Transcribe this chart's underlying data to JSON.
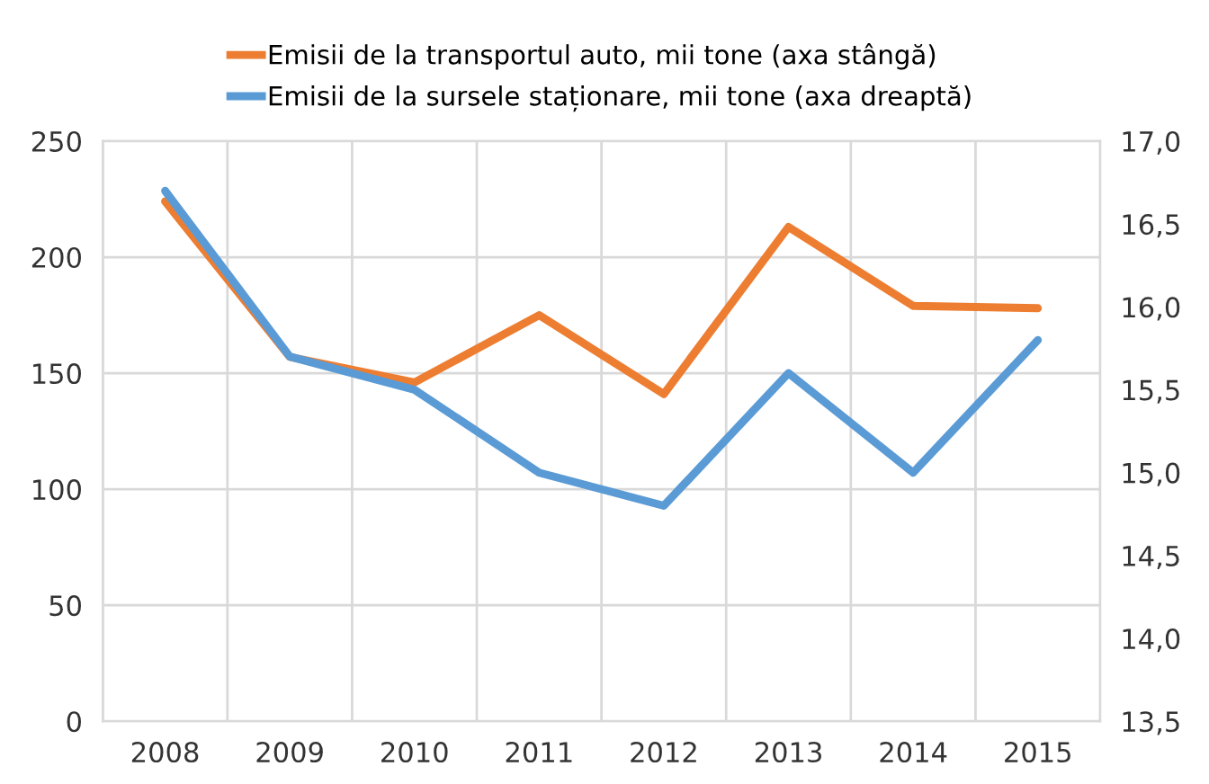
{
  "chart_data": {
    "type": "line",
    "categories": [
      "2008",
      "2009",
      "2010",
      "2011",
      "2012",
      "2013",
      "2014",
      "2015"
    ],
    "series": [
      {
        "name": "Emisii de la transportul auto, mii tone (axa stângă)",
        "color": "#ed7d31",
        "values": [
          224,
          157,
          146,
          175,
          141,
          213,
          179,
          178
        ]
      },
      {
        "name": "Emisii de la sursele staționare, mii tone (axa dreaptă)",
        "color": "#5b9bd5",
        "axis": "y2",
        "values": [
          16.7,
          15.7,
          15.5,
          15.0,
          14.8,
          15.6,
          15.0,
          15.8
        ]
      }
    ],
    "ylim": [
      0,
      250
    ],
    "yticks": [
      0,
      50,
      100,
      150,
      200,
      250
    ],
    "y2lim": [
      13.5,
      17.0
    ],
    "y2ticks": [
      {
        "value": 13.5,
        "label": "13,5"
      },
      {
        "value": 14.0,
        "label": "14,0"
      },
      {
        "value": 14.5,
        "label": "14,5"
      },
      {
        "value": 15.0,
        "label": "15,0"
      },
      {
        "value": 15.5,
        "label": "15,5"
      },
      {
        "value": 16.0,
        "label": "16,0"
      },
      {
        "value": 16.5,
        "label": "16,5"
      },
      {
        "value": 17.0,
        "label": "17,0"
      }
    ],
    "grid": true,
    "legend": "top",
    "marker": "none",
    "line_style": "solid"
  }
}
